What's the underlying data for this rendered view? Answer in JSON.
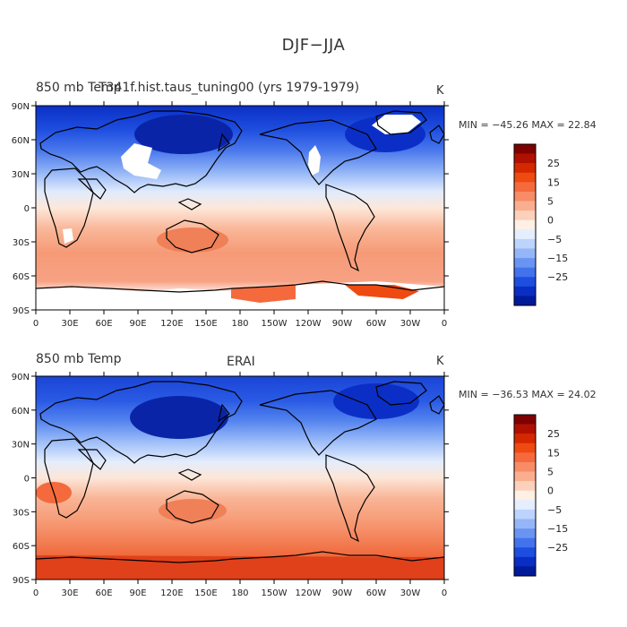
{
  "figure": {
    "title": "DJF−JJA"
  },
  "map_data": [
    {
      "left_title": "850 mb Temp",
      "center_title": "T341f.hist.taus_tuning00 (yrs 1979-1979)",
      "units": "K",
      "min_label": "MIN = ",
      "min_value": "−45.26",
      "max_label": "MAX = ",
      "max_value": "22.84",
      "source": "model"
    },
    {
      "left_title": "850 mb Temp",
      "center_title": "ERAI",
      "units": "K",
      "min_label": "MIN = ",
      "min_value": "−36.53",
      "max_label": "MAX = ",
      "max_value": "24.02",
      "source": "reanalysis"
    }
  ],
  "axes": {
    "lat_ticks": [
      "90N",
      "60N",
      "30N",
      "0",
      "30S",
      "60S",
      "90S"
    ],
    "lon_ticks": [
      "0",
      "30E",
      "60E",
      "90E",
      "120E",
      "150E",
      "180",
      "150W",
      "120W",
      "90W",
      "60W",
      "30W",
      "0"
    ]
  },
  "colorbar": {
    "labels": [
      "25",
      "15",
      "5",
      "0",
      "−5",
      "−15",
      "−25"
    ],
    "colors": [
      "#7f0000",
      "#b01000",
      "#d42800",
      "#ee4a12",
      "#f46a3c",
      "#f78c66",
      "#faae90",
      "#fcd0bb",
      "#fef0e4",
      "#e4eefe",
      "#bcd4fc",
      "#94b6f8",
      "#6a94f2",
      "#4272ec",
      "#1e4ee0",
      "#0a2ec4",
      "#001a9a"
    ]
  }
}
